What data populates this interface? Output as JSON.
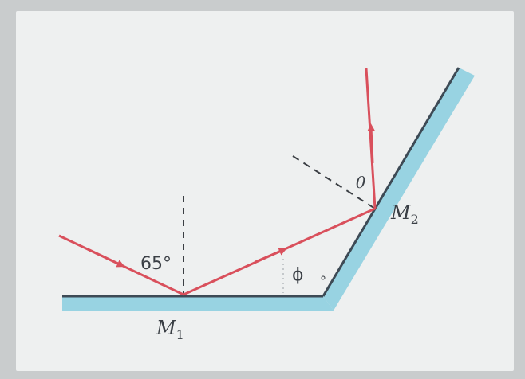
{
  "labels": {
    "incident_angle": "65°",
    "mirror1": "M",
    "mirror1_sub": "1",
    "mirror2": "M",
    "mirror2_sub": "2",
    "theta": "θ",
    "phi": "ϕ",
    "small_circle": "∘"
  },
  "colors": {
    "ray": "#d9505c",
    "mirror_face": "#3d4a55",
    "mirror_back": "#8ecfe0",
    "normal": "#3b3f44"
  }
}
